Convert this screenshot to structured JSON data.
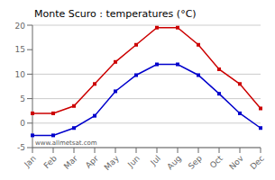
{
  "chart_data": {
    "type": "line",
    "title": "Monte Scuro : temperatures (°C)",
    "categories": [
      "Jan",
      "Feb",
      "Mar",
      "Apr",
      "May",
      "Jun",
      "Jul",
      "Aug",
      "Sep",
      "Oct",
      "Nov",
      "Dec"
    ],
    "series": [
      {
        "color": "#cc0000",
        "marker": "square",
        "values": [
          2,
          2,
          3.5,
          8,
          12.5,
          16,
          19.5,
          19.5,
          16,
          11,
          8,
          3
        ]
      },
      {
        "color": "#0000cc",
        "marker": "square",
        "values": [
          -2.5,
          -2.5,
          -1,
          1.5,
          6.5,
          9.8,
          12,
          12,
          9.8,
          6,
          2,
          -1
        ]
      }
    ],
    "ylim": [
      -5,
      20
    ],
    "yticks": [
      -5,
      0,
      5,
      10,
      15,
      20
    ],
    "grid": true,
    "annotation": "www.allmetsat.com"
  }
}
